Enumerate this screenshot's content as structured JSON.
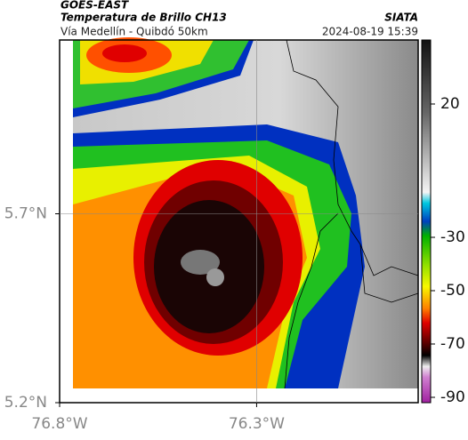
{
  "header": {
    "title": "GOES-EAST",
    "subtitle": "Temperatura de Brillo CH13",
    "source": "SIATA",
    "route": "Vía Medellín - Quibdó 50km",
    "timestamp": "2024-08-19 15:39"
  },
  "map": {
    "lon_range": [
      -76.8,
      -75.89
    ],
    "lat_range": [
      5.2,
      6.16
    ],
    "lon_ticks": [
      {
        "value": -76.8,
        "label": "76.8°W"
      },
      {
        "value": -76.3,
        "label": "76.3°W"
      }
    ],
    "lat_ticks": [
      {
        "value": 5.7,
        "label": "5.7°N"
      },
      {
        "value": 5.2,
        "label": "5.2°N"
      }
    ]
  },
  "colorbar": {
    "range": [
      44,
      -92
    ],
    "ticks": [
      20,
      -30,
      -50,
      -70,
      -90
    ]
  }
}
